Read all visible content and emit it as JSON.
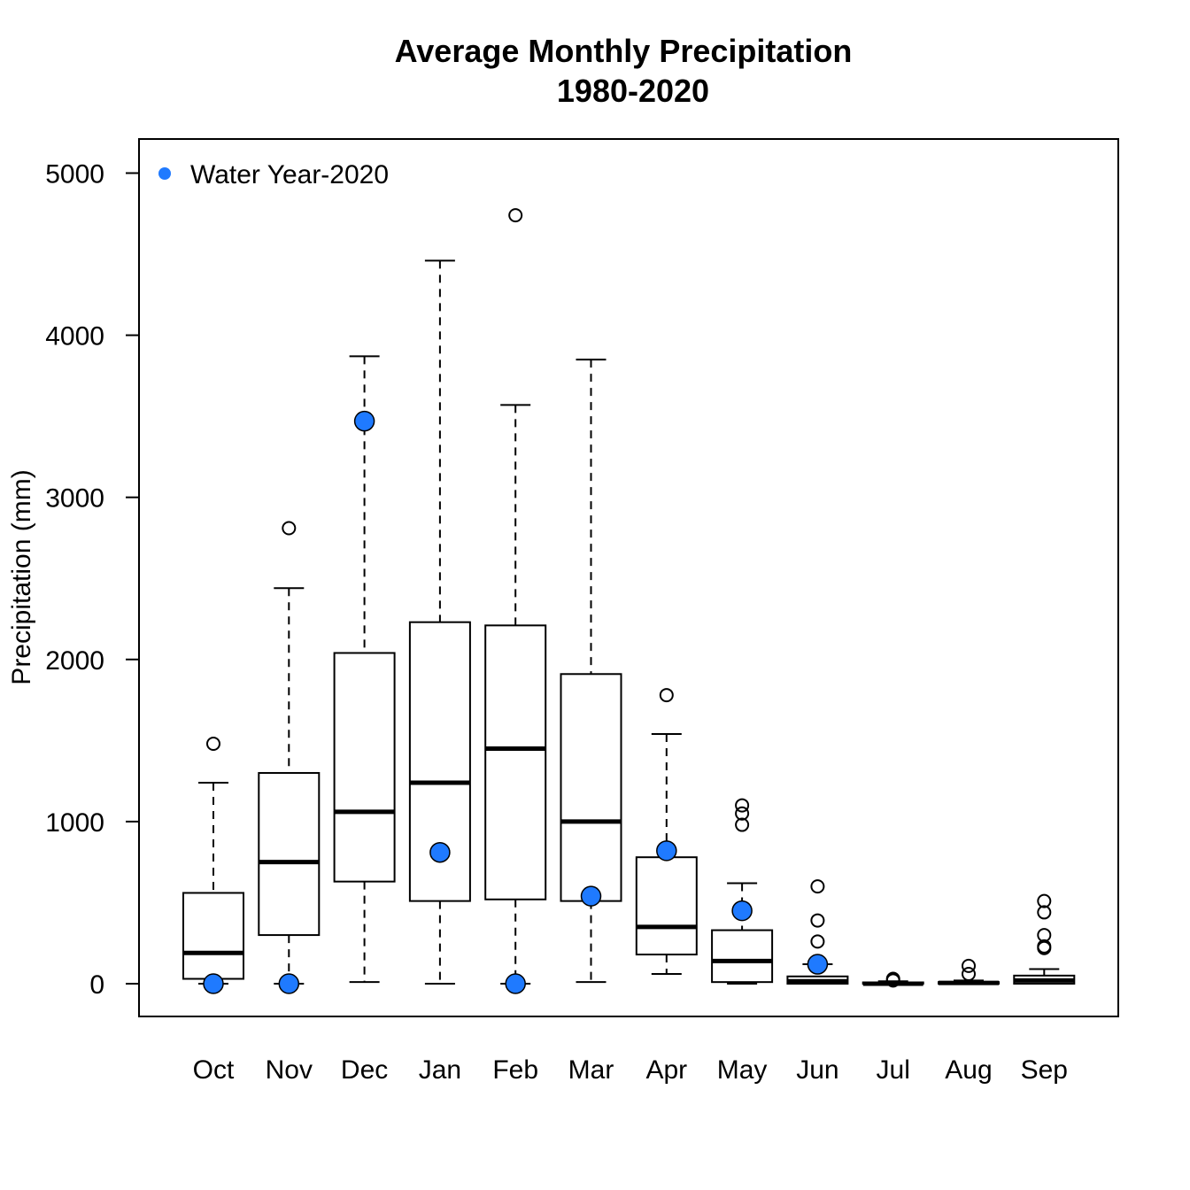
{
  "chart_data": {
    "type": "boxplot",
    "title": "Average Monthly Precipitation",
    "subtitle": "1980-2020",
    "xlabel": "",
    "ylabel": "Precipitation (mm)",
    "ylim": [
      -200,
      5200
    ],
    "yticks": [
      0,
      1000,
      2000,
      3000,
      4000,
      5000
    ],
    "grid": false,
    "legend": {
      "position": "top-left",
      "entries": [
        {
          "label": "Water Year-2020",
          "color": "#1f7aff"
        }
      ]
    },
    "categories": [
      "Oct",
      "Nov",
      "Dec",
      "Jan",
      "Feb",
      "Mar",
      "Apr",
      "May",
      "Jun",
      "Jul",
      "Aug",
      "Sep"
    ],
    "boxes": [
      {
        "month": "Oct",
        "whisker_low": 0,
        "q1": 30,
        "median": 190,
        "q3": 560,
        "whisker_high": 1240,
        "outliers": [
          1480
        ]
      },
      {
        "month": "Nov",
        "whisker_low": 0,
        "q1": 300,
        "median": 750,
        "q3": 1300,
        "whisker_high": 2440,
        "outliers": [
          2810
        ]
      },
      {
        "month": "Dec",
        "whisker_low": 10,
        "q1": 630,
        "median": 1060,
        "q3": 2040,
        "whisker_high": 3870,
        "outliers": []
      },
      {
        "month": "Jan",
        "whisker_low": 0,
        "q1": 510,
        "median": 1240,
        "q3": 2230,
        "whisker_high": 4460,
        "outliers": []
      },
      {
        "month": "Feb",
        "whisker_low": 0,
        "q1": 520,
        "median": 1450,
        "q3": 2210,
        "whisker_high": 3570,
        "outliers": [
          4740
        ]
      },
      {
        "month": "Mar",
        "whisker_low": 10,
        "q1": 510,
        "median": 1000,
        "q3": 1910,
        "whisker_high": 3850,
        "outliers": []
      },
      {
        "month": "Apr",
        "whisker_low": 60,
        "q1": 180,
        "median": 350,
        "q3": 780,
        "whisker_high": 1540,
        "outliers": [
          1780
        ]
      },
      {
        "month": "May",
        "whisker_low": 0,
        "q1": 10,
        "median": 140,
        "q3": 330,
        "whisker_high": 620,
        "outliers": [
          980,
          1050,
          1100
        ]
      },
      {
        "month": "Jun",
        "whisker_low": 0,
        "q1": 0,
        "median": 15,
        "q3": 45,
        "whisker_high": 120,
        "outliers": [
          260,
          390,
          600
        ]
      },
      {
        "month": "Jul",
        "whisker_low": 0,
        "q1": 0,
        "median": 0,
        "q3": 8,
        "whisker_high": 15,
        "outliers": [
          20,
          30
        ]
      },
      {
        "month": "Aug",
        "whisker_low": 0,
        "q1": 0,
        "median": 5,
        "q3": 10,
        "whisker_high": 20,
        "outliers": [
          60,
          110
        ]
      },
      {
        "month": "Sep",
        "whisker_low": 0,
        "q1": 0,
        "median": 20,
        "q3": 50,
        "whisker_high": 90,
        "outliers": [
          220,
          230,
          300,
          440,
          510
        ]
      }
    ],
    "series": [
      {
        "name": "Water Year-2020",
        "color": "#1f7aff",
        "values": [
          0,
          0,
          3470,
          810,
          0,
          540,
          820,
          450,
          120,
          null,
          null,
          null
        ]
      }
    ]
  }
}
